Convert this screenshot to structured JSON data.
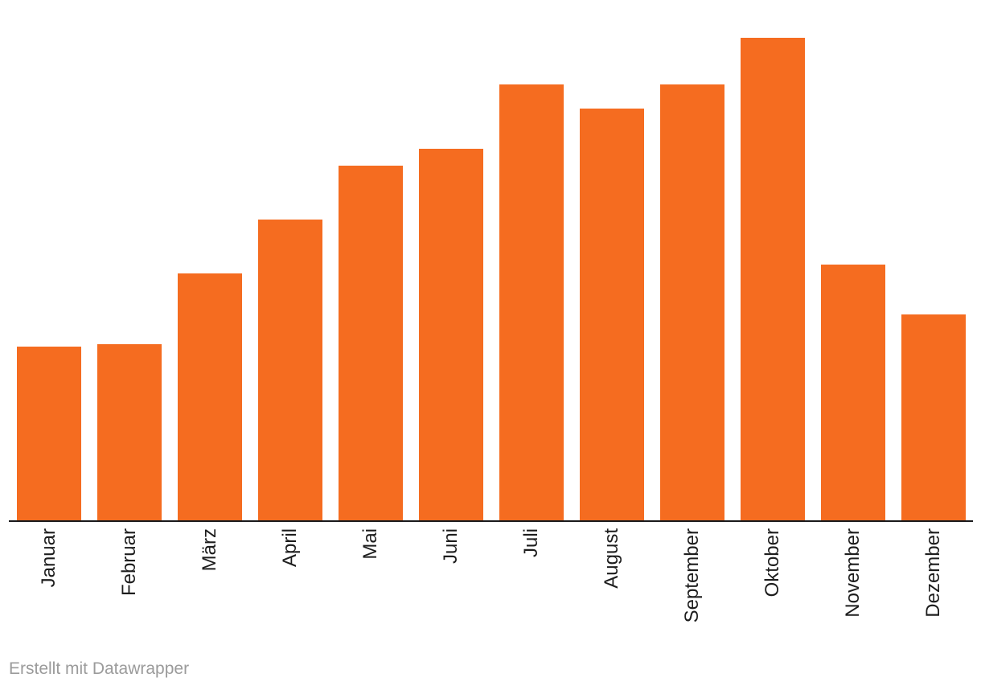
{
  "chart_data": {
    "type": "bar",
    "title": "",
    "xlabel": "",
    "ylabel": "",
    "categories": [
      "Januar",
      "Februar",
      "März",
      "April",
      "Mai",
      "Juni",
      "Juli",
      "August",
      "September",
      "Oktober",
      "November",
      "Dezember"
    ],
    "values": [
      35.9,
      36.4,
      51.2,
      62.2,
      73.4,
      77.0,
      90.2,
      85.3,
      90.2,
      100,
      52.9,
      42.7
    ],
    "ylim": [
      0,
      100
    ],
    "value_note": "y-axis has no tick labels; values estimated as percent of tallest bar (Oktober = 100)",
    "grid": false,
    "y_axis_visible": false,
    "x_label_rotation_deg": 90,
    "legend": "none",
    "bar_color": "#F56C20",
    "axis_line_color": "#19191b",
    "label_color": "#1d1d1d"
  },
  "footer": {
    "attribution": "Erstellt mit Datawrapper",
    "color": "#9b9b9b"
  }
}
